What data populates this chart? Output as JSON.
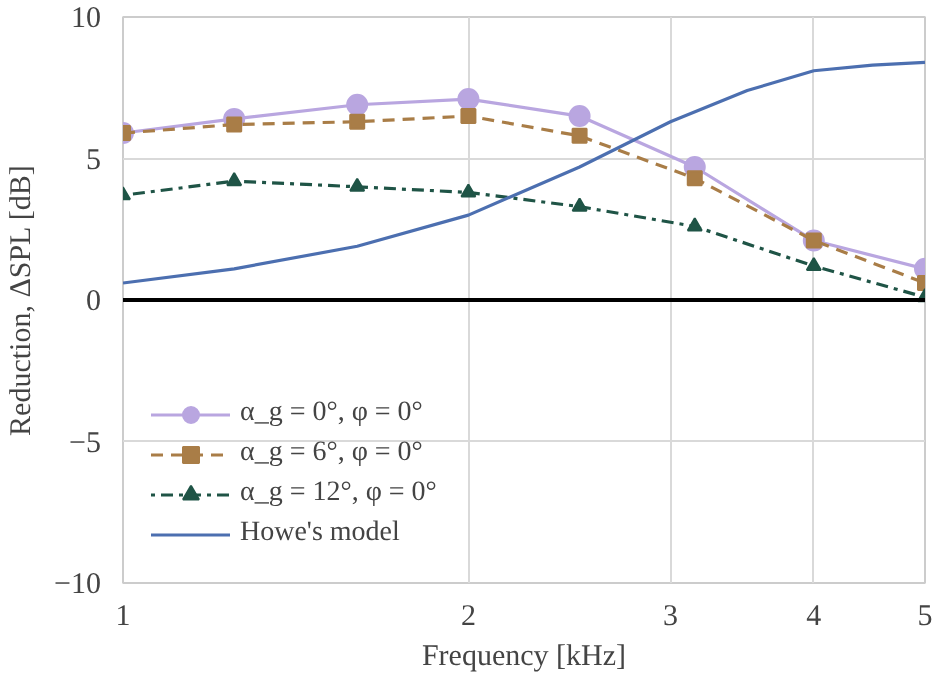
{
  "chart_data": {
    "type": "line",
    "xlabel": "Frequency [kHz]",
    "ylabel": "Reduction, ΔSPL [dB]",
    "log": "x",
    "xlim": [
      1,
      5
    ],
    "xticks": [
      1,
      2,
      3,
      4,
      5
    ],
    "ylim": [
      -10,
      10
    ],
    "yticks": [
      {
        "value": -10,
        "label": "−10"
      },
      {
        "value": -5,
        "label": "−5"
      },
      0,
      5,
      10
    ],
    "grid": true,
    "legend": "bottom left",
    "ref_lines": [
      {
        "axis": "y",
        "value": 0,
        "color": "#000000"
      }
    ],
    "series": [
      {
        "name": "α_g = 0°, φ = 0°",
        "color": "#b9a6e0",
        "marker": "circle",
        "line_style": "solid",
        "x": [
          1,
          1.25,
          1.6,
          2,
          2.5,
          3.15,
          4,
          5
        ],
        "values": [
          5.9,
          6.4,
          6.9,
          7.1,
          6.5,
          4.7,
          2.1,
          1.1
        ]
      },
      {
        "name": "α_g = 6°, φ = 0°",
        "color": "#a97d47",
        "marker": "square",
        "line_style": "dashed",
        "x": [
          1,
          1.25,
          1.6,
          2,
          2.5,
          3.15,
          4,
          5
        ],
        "values": [
          5.9,
          6.2,
          6.3,
          6.5,
          5.8,
          4.3,
          2.1,
          0.6
        ]
      },
      {
        "name": "α_g = 12°, φ = 0°",
        "color": "#1f5446",
        "marker": "triangle",
        "line_style": "dotted",
        "x": [
          1,
          1.25,
          1.6,
          2,
          2.5,
          3.15,
          4,
          5
        ],
        "values": [
          3.7,
          4.2,
          4.0,
          3.8,
          3.3,
          2.6,
          1.2,
          0.1
        ]
      },
      {
        "name": "Howe's model",
        "color": "#4c6fb0",
        "marker": "none",
        "line_style": "solid",
        "x": [
          1,
          1.25,
          1.6,
          2,
          2.5,
          3,
          3.5,
          4,
          4.5,
          5
        ],
        "values": [
          0.6,
          1.1,
          1.9,
          3.0,
          4.7,
          6.3,
          7.4,
          8.1,
          8.3,
          8.4
        ]
      }
    ]
  }
}
